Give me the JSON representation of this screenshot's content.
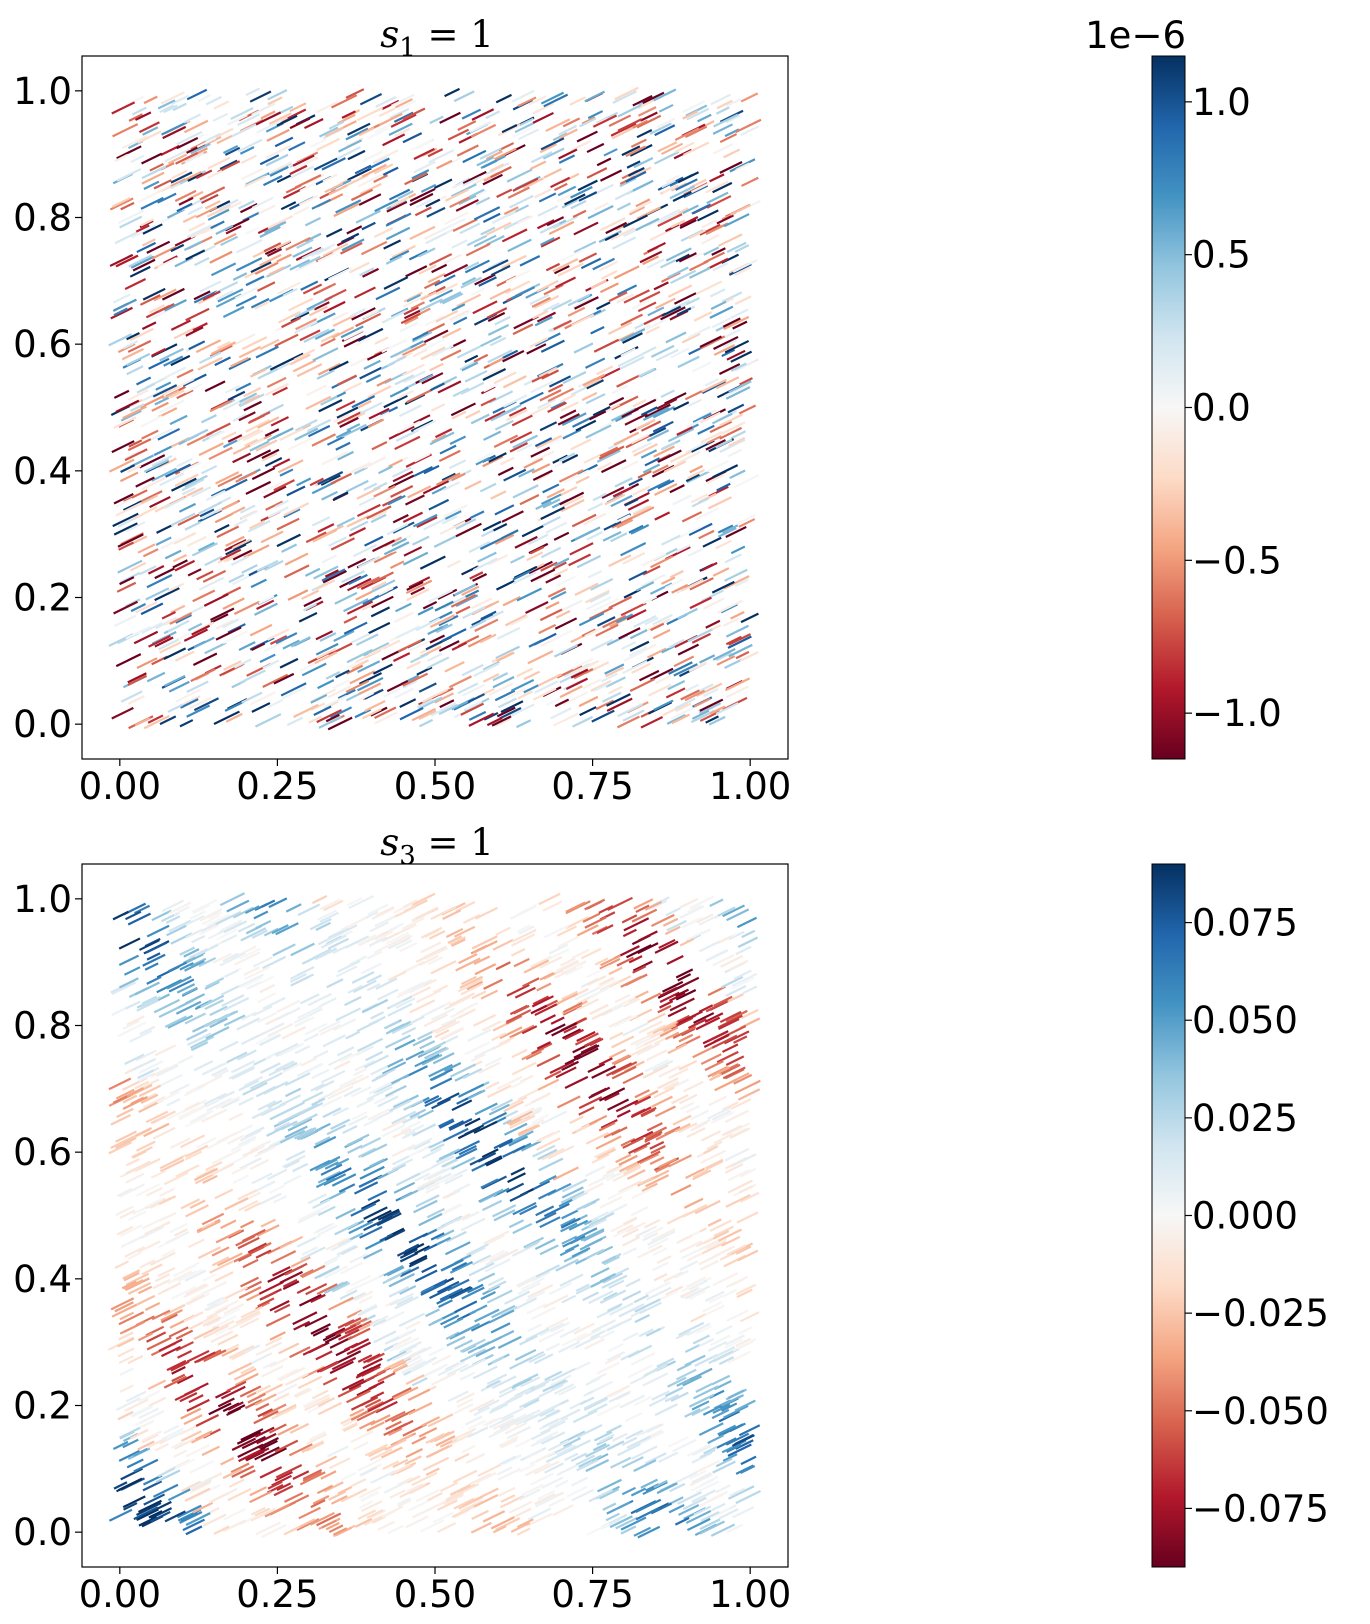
{
  "chart_data": [
    {
      "type": "scatter",
      "marker": "short oriented line segments",
      "title": "s_1 = 1",
      "title_parts": {
        "var": "s",
        "sub": "1",
        "rest": " = 1"
      },
      "xlabel": "",
      "ylabel": "",
      "xlim": [
        -0.06,
        1.06
      ],
      "ylim": [
        -0.055,
        1.055
      ],
      "xticks": [
        0.0,
        0.25,
        0.5,
        0.75,
        1.0
      ],
      "xtick_labels": [
        "0.00",
        "0.25",
        "0.50",
        "0.75",
        "1.00"
      ],
      "yticks": [
        0.0,
        0.2,
        0.4,
        0.6,
        0.8,
        1.0
      ],
      "ytick_labels": [
        "0.0",
        "0.2",
        "0.4",
        "0.6",
        "0.8",
        "1.0"
      ],
      "grid": false,
      "segment_angle_deg": 26,
      "pattern": "random (noise-like)",
      "colorbar": {
        "cmap": "RdBu",
        "min": -1.15,
        "max": 1.15,
        "offset_label": "1e−6",
        "ticks": [
          -1.0,
          -0.5,
          0.0,
          0.5,
          1.0
        ],
        "tick_labels": [
          "−1.0",
          "−0.5",
          "0.0",
          "0.5",
          "1.0"
        ]
      }
    },
    {
      "type": "scatter",
      "marker": "short oriented line segments",
      "title": "s_3 = 1",
      "title_parts": {
        "var": "s",
        "sub": "3",
        "rest": " = 1"
      },
      "xlabel": "",
      "ylabel": "",
      "xlim": [
        -0.06,
        1.06
      ],
      "ylim": [
        -0.055,
        1.055
      ],
      "xticks": [
        0.0,
        0.25,
        0.5,
        0.75,
        1.0
      ],
      "xtick_labels": [
        "0.00",
        "0.25",
        "0.50",
        "0.75",
        "1.00"
      ],
      "yticks": [
        0.0,
        0.2,
        0.4,
        0.6,
        0.8,
        1.0
      ],
      "ytick_labels": [
        "0.0",
        "0.2",
        "0.4",
        "0.6",
        "0.8",
        "1.0"
      ],
      "grid": false,
      "segment_angle_deg": 26,
      "pattern": "diagonal wave bands",
      "colorbar": {
        "cmap": "RdBu",
        "min": -0.09,
        "max": 0.09,
        "offset_label": "",
        "ticks": [
          -0.075,
          -0.05,
          -0.025,
          0.0,
          0.025,
          0.05,
          0.075
        ],
        "tick_labels": [
          "−0.075",
          "−0.050",
          "−0.025",
          "0.000",
          "0.025",
          "0.050",
          "0.075"
        ]
      }
    }
  ],
  "colormap_stops": [
    "#67001f",
    "#b2182b",
    "#d6604d",
    "#f4a582",
    "#fddbc7",
    "#f7f7f7",
    "#d1e5f0",
    "#92c5de",
    "#4393c3",
    "#2166ac",
    "#053061"
  ]
}
